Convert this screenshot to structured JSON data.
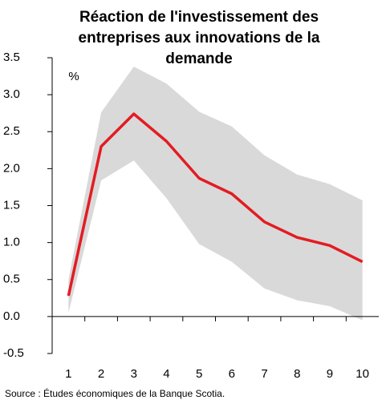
{
  "chart_data": {
    "type": "line",
    "title": "Réaction de l'investissement des entreprises aux innovations de la demande",
    "y_label": "%",
    "source": "Source : Études économiques de la Banque Scotia.",
    "categories": [
      "1",
      "2",
      "3",
      "4",
      "5",
      "6",
      "7",
      "8",
      "9",
      "10"
    ],
    "values": [
      0.28,
      2.3,
      2.74,
      2.37,
      1.87,
      1.66,
      1.28,
      1.07,
      0.96,
      0.74
    ],
    "color": "#e31c23",
    "band": {
      "upper": [
        0.5,
        2.76,
        3.38,
        3.15,
        2.77,
        2.57,
        2.18,
        1.92,
        1.79,
        1.57
      ],
      "lower": [
        0.05,
        1.84,
        2.11,
        1.6,
        0.98,
        0.74,
        0.38,
        0.22,
        0.14,
        -0.05
      ],
      "color": "#d9d9d9"
    },
    "ylim": [
      -0.5,
      3.5
    ],
    "yticks": [
      -0.5,
      {
        "value": 0,
        "label": "0.0"
      },
      0.5,
      {
        "value": 1,
        "label": "1.0"
      },
      1.5,
      {
        "value": 2,
        "label": "2.0"
      },
      2.5,
      {
        "value": 3,
        "label": "3.0"
      },
      3.5
    ]
  }
}
